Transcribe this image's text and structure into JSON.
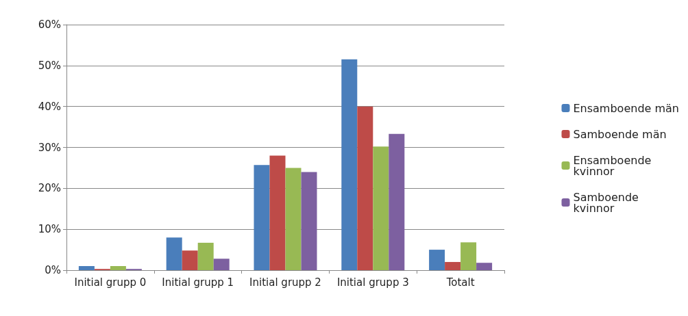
{
  "chart_data": {
    "type": "bar",
    "categories": [
      "Initial grupp 0",
      "Initial grupp 1",
      "Initial grupp 2",
      "Initial grupp 3",
      "Totalt"
    ],
    "series": [
      {
        "name": "Ensamboende män",
        "color": "#4a7ebb",
        "values": [
          1,
          8,
          25.7,
          51.5,
          5
        ]
      },
      {
        "name": "Samboende män",
        "color": "#be4b48",
        "values": [
          0.3,
          4.8,
          28,
          40,
          2
        ]
      },
      {
        "name": "Ensamboende kvinnor",
        "color": "#98b954",
        "values": [
          1,
          6.7,
          25,
          30.2,
          6.8
        ]
      },
      {
        "name": "Samboende kvinnor",
        "color": "#7d60a0",
        "values": [
          0.3,
          2.8,
          24,
          33.3,
          1.8
        ]
      }
    ],
    "ylim": [
      0,
      60
    ],
    "yticks": [
      {
        "value": 0,
        "label": "0%"
      },
      {
        "value": 10,
        "label": "10%"
      },
      {
        "value": 20,
        "label": "20%"
      },
      {
        "value": 30,
        "label": "30%"
      },
      {
        "value": 40,
        "label": "40%"
      },
      {
        "value": 50,
        "label": "50%"
      },
      {
        "value": 60,
        "label": "60%"
      }
    ],
    "grid": "y",
    "legend": "right"
  }
}
